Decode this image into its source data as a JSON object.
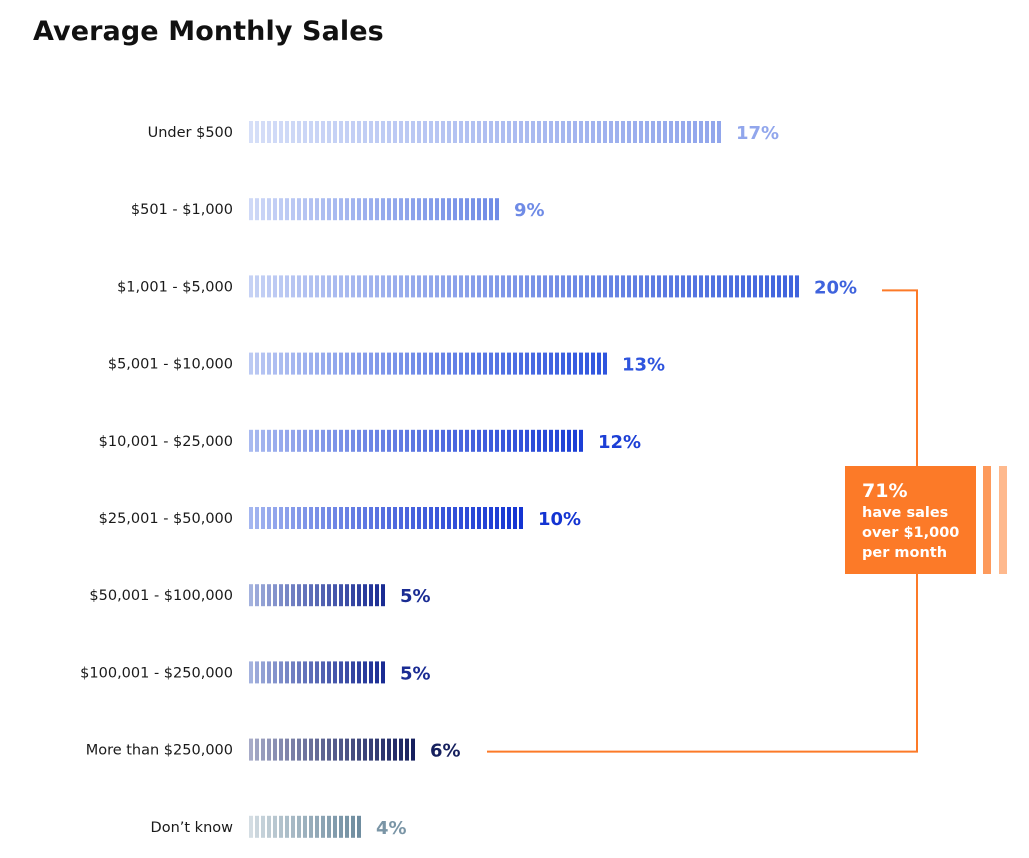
{
  "chart_data": {
    "type": "bar",
    "orientation": "horizontal",
    "title": "Average Monthly Sales",
    "xlabel": "",
    "ylabel": "",
    "xlim": [
      0,
      20
    ],
    "grid": false,
    "legend": "none",
    "categories": [
      "Under $500",
      "$501 - $1,000",
      "$1,001 - $5,000",
      "$5,001 - $10,000",
      "$10,001 - $25,000",
      "$25,001 - $50,000",
      "$50,001 - $100,000",
      "$100,001 - $250,000",
      "More than $250,000",
      "Don’t know"
    ],
    "values": [
      17,
      9,
      20,
      13,
      12,
      10,
      5,
      5,
      6,
      4
    ],
    "value_labels": [
      "17%",
      "9%",
      "20%",
      "13%",
      "12%",
      "10%",
      "5%",
      "5%",
      "6%",
      "4%"
    ],
    "bar_colors": [
      {
        "start": "#d6dff8",
        "end": "#91a6ec",
        "label": "#91a6ec"
      },
      {
        "start": "#cfd9f7",
        "end": "#6f8be6",
        "label": "#6f8be6"
      },
      {
        "start": "#c6d2f5",
        "end": "#3f63dd",
        "label": "#3f63dd"
      },
      {
        "start": "#bccaf3",
        "end": "#2f55de",
        "label": "#2f55de"
      },
      {
        "start": "#a9baf0",
        "end": "#1c3fd6",
        "label": "#1c3fd6"
      },
      {
        "start": "#a4b6f0",
        "end": "#1434d2",
        "label": "#1434d2"
      },
      {
        "start": "#a4b2de",
        "end": "#1a2c93",
        "label": "#1a2c93"
      },
      {
        "start": "#a4b2de",
        "end": "#1a2c93",
        "label": "#1a2c93"
      },
      {
        "start": "#a7abc8",
        "end": "#16205e",
        "label": "#16205e"
      },
      {
        "start": "#d4dde3",
        "end": "#6f8da0",
        "label": "#7a95a6"
      }
    ],
    "annotation": {
      "headline": "71%",
      "lines": [
        "have sales",
        "over $1,000",
        "per month"
      ],
      "bracket_from_category": "$1,001 - $5,000",
      "bracket_to_category": "More than $250,000",
      "color": "#fc7a28",
      "stripe_colors": [
        "#fd9a5c",
        "#feb98e"
      ]
    }
  }
}
